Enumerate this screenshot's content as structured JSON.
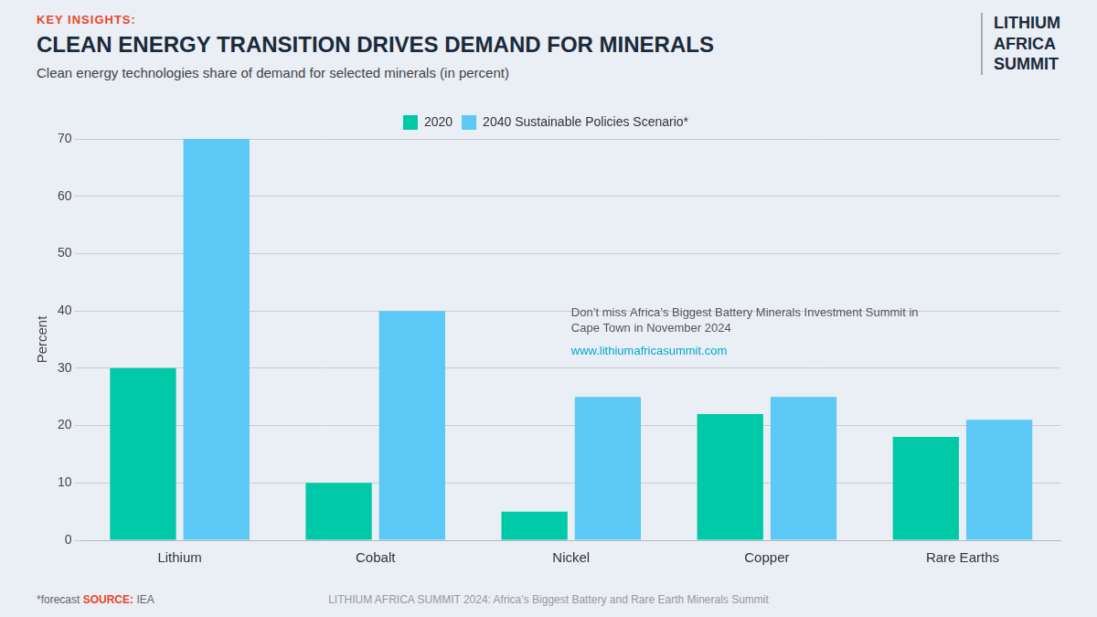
{
  "chart_data": {
    "type": "bar",
    "title": "CLEAN ENERGY TRANSITION DRIVES DEMAND FOR MINERALS",
    "subtitle": "Clean energy technologies share of demand for selected minerals (in percent)",
    "categories": [
      "Lithium",
      "Cobalt",
      "Nickel",
      "Copper",
      "Rare Earths"
    ],
    "series": [
      {
        "name": "2020",
        "color": "#00C9A7",
        "values": [
          30,
          10,
          5,
          22,
          18
        ]
      },
      {
        "name": "2040 Sustainable Policies Scenario*",
        "color": "#5BC8F5",
        "values": [
          70,
          40,
          25,
          25,
          21
        ]
      }
    ],
    "ylabel": "Percent",
    "ylim": [
      0,
      70
    ],
    "yticks": [
      0,
      10,
      20,
      30,
      40,
      50,
      60,
      70
    ],
    "grid": true,
    "legend": "top",
    "annotations": [
      "KEY INSIGHTS:",
      "Don’t miss Africa’s Biggest Battery Minerals Investment Summit in\nCape Town in November 2024  ",
      "www.lithiumafricasummit.com",
      "LITHIUM\nAFRICA\nSUMMIT",
      "*forecast",
      "SOURCE:",
      " IEA",
      "LITHIUM AFRICA SUMMIT 2024: Africa’s Biggest Battery and Rare Earth Minerals Summit"
    ]
  }
}
